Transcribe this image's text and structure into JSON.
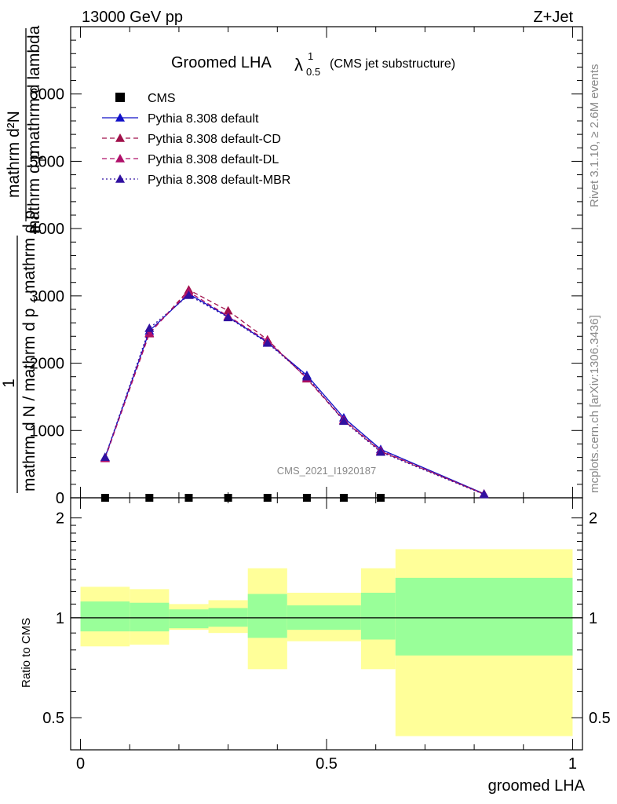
{
  "header": {
    "left": "13000 GeV pp",
    "right": "Z+Jet"
  },
  "side_text": {
    "rivet": "Rivet 3.1.10, ≥ 2.6M events",
    "mcplots": "mcplots.cern.ch [arXiv:1306.3436]"
  },
  "title": {
    "main": "Groomed LHA",
    "symbol": "λ",
    "sup": "1",
    "sub": "0.5",
    "note": "(CMS jet substructure)"
  },
  "ylabel": {
    "numerator": "mathrm d²N",
    "den1": "mathrm d p",
    "den1_sub": "T",
    "den2": "mathrm d lambda",
    "one": "1",
    "low_a": "mathrm d N / mathrm d p",
    "low_a_sub": "T",
    "low_b": "mathrm d p",
    "low_b_sub": "T"
  },
  "watermark": "CMS_2021_I1920187",
  "ratio_ylabel": "Ratio to CMS",
  "chart_data": {
    "type": "line",
    "xlabel": "groomed LHA",
    "main": {
      "xlim": [
        -0.02,
        1.02
      ],
      "ylim": [
        0,
        7000
      ],
      "yticks": [
        0,
        1000,
        2000,
        3000,
        4000,
        5000,
        6000
      ],
      "ytick_labels": [
        "0",
        "1000",
        "2000",
        "3000",
        "4000",
        "5000",
        "6000"
      ]
    },
    "x": [
      0.05,
      0.14,
      0.22,
      0.3,
      0.38,
      0.46,
      0.535,
      0.61,
      0.82
    ],
    "series": [
      {
        "name": "CMS",
        "marker": "square",
        "color": "#000000",
        "values": [
          0,
          0,
          0,
          0,
          0,
          0,
          0,
          0,
          null
        ]
      },
      {
        "name": "Pythia 8.308 default",
        "color": "#1010c8",
        "dash": "solid",
        "values": [
          600,
          2480,
          3030,
          2690,
          2310,
          1820,
          1190,
          720,
          60
        ]
      },
      {
        "name": "Pythia 8.308 default-CD",
        "color": "#a0104a",
        "dash": "6,4",
        "values": [
          590,
          2440,
          3090,
          2780,
          2350,
          1770,
          1150,
          690,
          55
        ]
      },
      {
        "name": "Pythia 8.308 default-DL",
        "color": "#b0106a",
        "dash": "6,4",
        "values": [
          585,
          2450,
          3060,
          2700,
          2330,
          1780,
          1160,
          700,
          55
        ]
      },
      {
        "name": "Pythia 8.308 default-MBR",
        "color": "#3010a0",
        "dash": "2,3",
        "values": [
          605,
          2520,
          3010,
          2680,
          2300,
          1800,
          1140,
          680,
          50
        ]
      }
    ],
    "ratio": {
      "ylabel": "Ratio to CMS",
      "ylim": [
        0.4,
        2.3
      ],
      "yticks": [
        0.5,
        1,
        2
      ],
      "ytick_labels": [
        "0.5",
        "1",
        "2"
      ],
      "xticks": [
        0,
        0.5,
        1
      ],
      "xtick_labels": [
        "0",
        "0.5",
        "1"
      ],
      "bands": [
        {
          "x0": 0.0,
          "x1": 0.1,
          "green": [
            0.91,
            1.12
          ],
          "yellow": [
            0.82,
            1.24
          ]
        },
        {
          "x0": 0.1,
          "x1": 0.18,
          "green": [
            0.91,
            1.11
          ],
          "yellow": [
            0.83,
            1.22
          ]
        },
        {
          "x0": 0.18,
          "x1": 0.26,
          "green": [
            0.93,
            1.06
          ],
          "yellow": [
            0.92,
            1.1
          ]
        },
        {
          "x0": 0.26,
          "x1": 0.34,
          "green": [
            0.94,
            1.07
          ],
          "yellow": [
            0.9,
            1.13
          ]
        },
        {
          "x0": 0.34,
          "x1": 0.42,
          "green": [
            0.87,
            1.18
          ],
          "yellow": [
            0.7,
            1.41
          ]
        },
        {
          "x0": 0.42,
          "x1": 0.5,
          "green": [
            0.92,
            1.09
          ],
          "yellow": [
            0.85,
            1.19
          ]
        },
        {
          "x0": 0.5,
          "x1": 0.57,
          "green": [
            0.92,
            1.09
          ],
          "yellow": [
            0.85,
            1.19
          ]
        },
        {
          "x0": 0.57,
          "x1": 0.64,
          "green": [
            0.86,
            1.19
          ],
          "yellow": [
            0.7,
            1.41
          ]
        },
        {
          "x0": 0.64,
          "x1": 1.0,
          "green": [
            0.77,
            1.32
          ],
          "yellow": [
            0.44,
            1.61
          ]
        }
      ]
    }
  }
}
